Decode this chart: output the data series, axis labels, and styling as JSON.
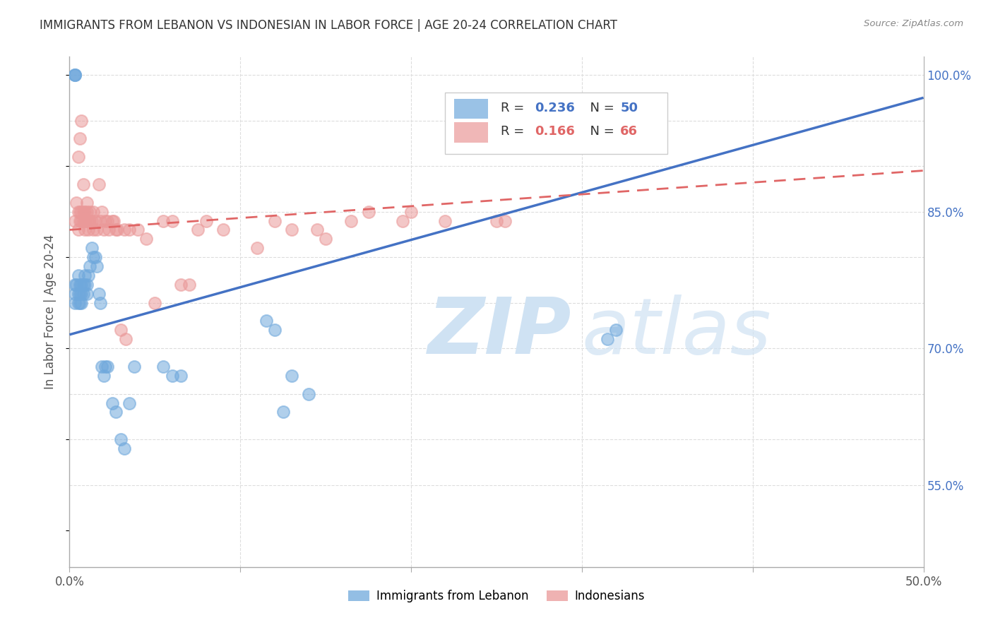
{
  "title": "IMMIGRANTS FROM LEBANON VS INDONESIAN IN LABOR FORCE | AGE 20-24 CORRELATION CHART",
  "source": "Source: ZipAtlas.com",
  "ylabel": "In Labor Force | Age 20-24",
  "xlim": [
    0.0,
    0.5
  ],
  "ylim": [
    0.46,
    1.02
  ],
  "xtick_positions": [
    0.0,
    0.1,
    0.2,
    0.3,
    0.4,
    0.5
  ],
  "xticklabels": [
    "0.0%",
    "",
    "",
    "",
    "",
    "50.0%"
  ],
  "ytick_positions": [
    0.5,
    0.55,
    0.6,
    0.65,
    0.7,
    0.75,
    0.8,
    0.85,
    0.9,
    0.95,
    1.0
  ],
  "ytick_labels_right": [
    "",
    "55.0%",
    "",
    "",
    "70.0%",
    "",
    "",
    "85.0%",
    "",
    "",
    "100.0%"
  ],
  "legend_R1": "0.236",
  "legend_N1": "50",
  "legend_R2": "0.166",
  "legend_N2": "66",
  "color_lebanon": "#6fa8dc",
  "color_indonesia": "#ea9999",
  "color_lebanon_line": "#4472c4",
  "color_indonesia_line": "#e06666",
  "watermark_color": "#cfe2f3",
  "lebanon_x": [
    0.003,
    0.003,
    0.003,
    0.004,
    0.005,
    0.005,
    0.005,
    0.006,
    0.006,
    0.006,
    0.007,
    0.007,
    0.007,
    0.008,
    0.008,
    0.009,
    0.009,
    0.01,
    0.01,
    0.011,
    0.012,
    0.013,
    0.014,
    0.015,
    0.016,
    0.017,
    0.018,
    0.019,
    0.02,
    0.021,
    0.022,
    0.025,
    0.027,
    0.03,
    0.032,
    0.035,
    0.038,
    0.055,
    0.06,
    0.065,
    0.115,
    0.12,
    0.125,
    0.13,
    0.14,
    0.315,
    0.32,
    0.003,
    0.003,
    0.003
  ],
  "lebanon_y": [
    0.77,
    0.76,
    0.75,
    0.77,
    0.76,
    0.75,
    0.78,
    0.77,
    0.76,
    0.75,
    0.77,
    0.76,
    0.75,
    0.77,
    0.76,
    0.78,
    0.77,
    0.77,
    0.76,
    0.78,
    0.79,
    0.81,
    0.8,
    0.8,
    0.79,
    0.76,
    0.75,
    0.68,
    0.67,
    0.68,
    0.68,
    0.64,
    0.63,
    0.6,
    0.59,
    0.64,
    0.68,
    0.68,
    0.67,
    0.67,
    0.73,
    0.72,
    0.63,
    0.67,
    0.65,
    0.71,
    0.72,
    1.0,
    1.0,
    1.0
  ],
  "indonesia_x": [
    0.003,
    0.004,
    0.005,
    0.005,
    0.006,
    0.006,
    0.007,
    0.007,
    0.008,
    0.008,
    0.009,
    0.009,
    0.01,
    0.01,
    0.011,
    0.011,
    0.012,
    0.012,
    0.013,
    0.014,
    0.014,
    0.015,
    0.016,
    0.017,
    0.018,
    0.019,
    0.02,
    0.021,
    0.022,
    0.023,
    0.025,
    0.026,
    0.027,
    0.028,
    0.03,
    0.032,
    0.033,
    0.035,
    0.04,
    0.045,
    0.05,
    0.055,
    0.06,
    0.065,
    0.07,
    0.075,
    0.08,
    0.09,
    0.11,
    0.12,
    0.13,
    0.145,
    0.15,
    0.165,
    0.175,
    0.195,
    0.2,
    0.22,
    0.25,
    0.255,
    0.005,
    0.006,
    0.007,
    0.008,
    0.009,
    0.01
  ],
  "indonesia_y": [
    0.84,
    0.86,
    0.85,
    0.83,
    0.84,
    0.85,
    0.85,
    0.84,
    0.85,
    0.84,
    0.84,
    0.83,
    0.84,
    0.85,
    0.84,
    0.83,
    0.84,
    0.85,
    0.84,
    0.85,
    0.83,
    0.84,
    0.83,
    0.88,
    0.84,
    0.85,
    0.83,
    0.84,
    0.84,
    0.83,
    0.84,
    0.84,
    0.83,
    0.83,
    0.72,
    0.83,
    0.71,
    0.83,
    0.83,
    0.82,
    0.75,
    0.84,
    0.84,
    0.77,
    0.77,
    0.83,
    0.84,
    0.83,
    0.81,
    0.84,
    0.83,
    0.83,
    0.82,
    0.84,
    0.85,
    0.84,
    0.85,
    0.84,
    0.84,
    0.84,
    0.91,
    0.93,
    0.95,
    0.88,
    0.85,
    0.86
  ]
}
